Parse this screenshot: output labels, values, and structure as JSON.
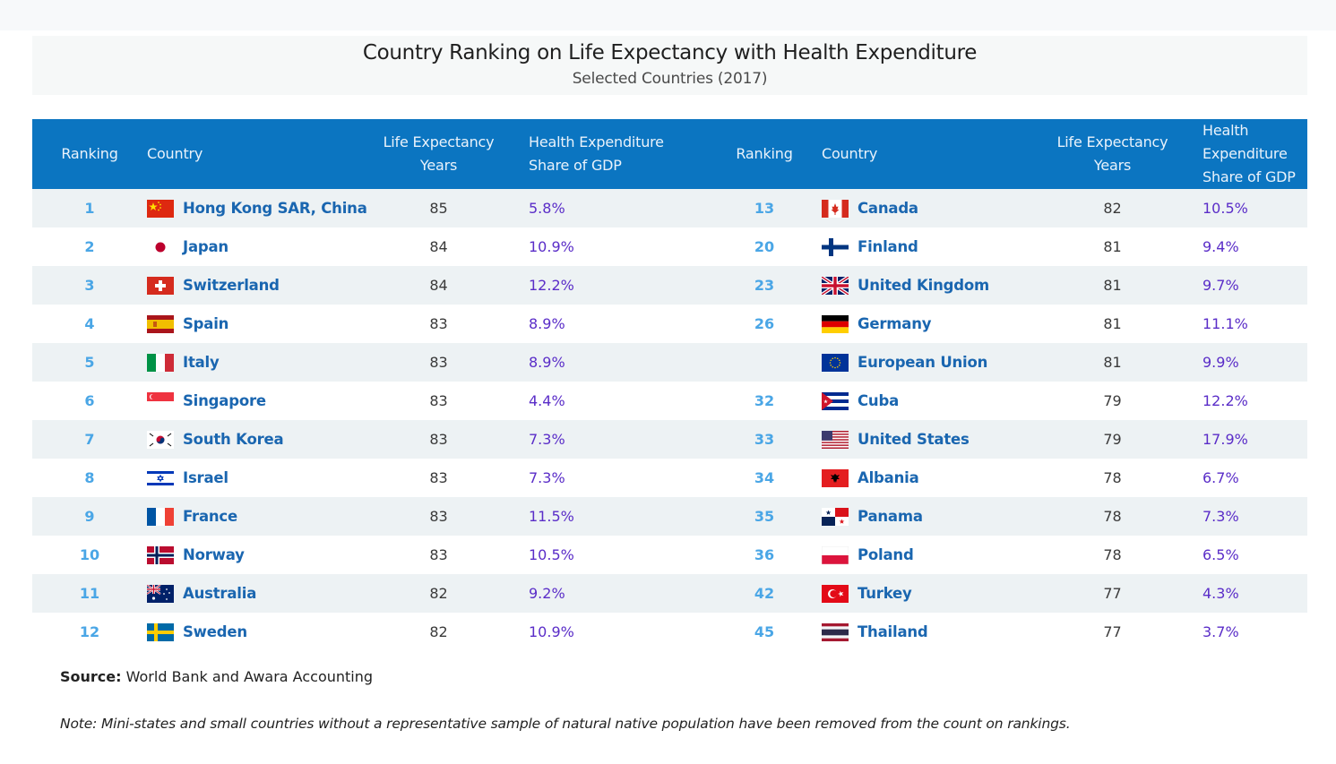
{
  "title": "Country Ranking on Life Expectancy with Health Expenditure",
  "subtitle": "Selected Countries (2017)",
  "headers": {
    "ranking": "Ranking",
    "country": "Country",
    "life_l1": "Life Expectancy",
    "life_l2": "Years",
    "gdp_l1": "Health Expenditure",
    "gdp_l2": "Share of GDP"
  },
  "left": [
    {
      "rank": "1",
      "country": "Hong Kong SAR, China",
      "flag": "hong-kong",
      "life": "85",
      "gdp": "5.8%"
    },
    {
      "rank": "2",
      "country": "Japan",
      "flag": "japan",
      "life": "84",
      "gdp": "10.9%"
    },
    {
      "rank": "3",
      "country": "Switzerland",
      "flag": "switzerland",
      "life": "84",
      "gdp": "12.2%"
    },
    {
      "rank": "4",
      "country": "Spain",
      "flag": "spain",
      "life": "83",
      "gdp": "8.9%"
    },
    {
      "rank": "5",
      "country": "Italy",
      "flag": "italy",
      "life": "83",
      "gdp": "8.9%"
    },
    {
      "rank": "6",
      "country": "Singapore",
      "flag": "singapore",
      "life": "83",
      "gdp": "4.4%"
    },
    {
      "rank": "7",
      "country": "South Korea",
      "flag": "south-korea",
      "life": "83",
      "gdp": "7.3%"
    },
    {
      "rank": "8",
      "country": "Israel",
      "flag": "israel",
      "life": "83",
      "gdp": "7.3%"
    },
    {
      "rank": "9",
      "country": "France",
      "flag": "france",
      "life": "83",
      "gdp": "11.5%"
    },
    {
      "rank": "10",
      "country": "Norway",
      "flag": "norway",
      "life": "83",
      "gdp": "10.5%"
    },
    {
      "rank": "11",
      "country": "Australia",
      "flag": "australia",
      "life": "82",
      "gdp": "9.2%"
    },
    {
      "rank": "12",
      "country": "Sweden",
      "flag": "sweden",
      "life": "82",
      "gdp": "10.9%"
    }
  ],
  "right": [
    {
      "rank": "13",
      "country": "Canada",
      "flag": "canada",
      "life": "82",
      "gdp": "10.5%"
    },
    {
      "rank": "20",
      "country": "Finland",
      "flag": "finland",
      "life": "81",
      "gdp": "9.4%"
    },
    {
      "rank": "23",
      "country": "United Kingdom",
      "flag": "united-kingdom",
      "life": "81",
      "gdp": "9.7%"
    },
    {
      "rank": "26",
      "country": "Germany",
      "flag": "germany",
      "life": "81",
      "gdp": "11.1%"
    },
    {
      "rank": "",
      "country": "European Union",
      "flag": "european-union",
      "life": "81",
      "gdp": "9.9%"
    },
    {
      "rank": "32",
      "country": "Cuba",
      "flag": "cuba",
      "life": "79",
      "gdp": "12.2%"
    },
    {
      "rank": "33",
      "country": "United States",
      "flag": "united-states",
      "life": "79",
      "gdp": "17.9%"
    },
    {
      "rank": "34",
      "country": "Albania",
      "flag": "albania",
      "life": "78",
      "gdp": "6.7%"
    },
    {
      "rank": "35",
      "country": "Panama",
      "flag": "panama",
      "life": "78",
      "gdp": "7.3%"
    },
    {
      "rank": "36",
      "country": "Poland",
      "flag": "poland",
      "life": "78",
      "gdp": "6.5%"
    },
    {
      "rank": "42",
      "country": "Turkey",
      "flag": "turkey",
      "life": "77",
      "gdp": "4.3%"
    },
    {
      "rank": "45",
      "country": "Thailand",
      "flag": "thailand",
      "life": "77",
      "gdp": "3.7%"
    }
  ],
  "source_label": "Source:",
  "source_text": "World Bank and Awara Accounting",
  "note": "Note: Mini-states and small countries without a representative sample of natural native population have been removed from the count on rankings."
}
